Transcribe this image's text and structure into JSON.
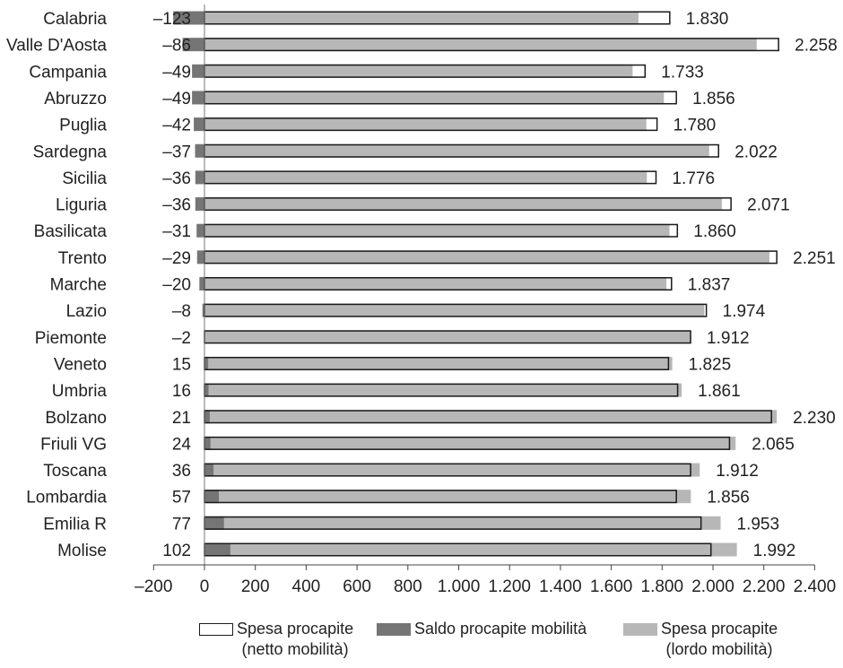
{
  "chart_data": {
    "type": "bar",
    "orientation": "horizontal",
    "categories": [
      "Calabria",
      "Valle D'Aosta",
      "Campania",
      "Abruzzo",
      "Puglia",
      "Sardegna",
      "Sicilia",
      "Liguria",
      "Basilicata",
      "Trento",
      "Marche",
      "Lazio",
      "Piemonte",
      "Veneto",
      "Umbria",
      "Bolzano",
      "Friuli VG",
      "Toscana",
      "Lombardia",
      "Emilia R",
      "Molise"
    ],
    "series": [
      {
        "name": "Spesa procapite\n(netto mobilità)",
        "values": [
          1830,
          2258,
          1733,
          1856,
          1780,
          2022,
          1776,
          2071,
          1860,
          2251,
          1837,
          1974,
          1912,
          1825,
          1861,
          2230,
          2065,
          1912,
          1856,
          1953,
          1992
        ]
      },
      {
        "name": "Saldo procapite mobilità",
        "values": [
          -123,
          -86,
          -49,
          -49,
          -42,
          -37,
          -36,
          -36,
          -31,
          -29,
          -20,
          -8,
          -2,
          15,
          16,
          21,
          24,
          36,
          57,
          77,
          102
        ]
      },
      {
        "name": "Spesa procapite\n(lordo mobilità)",
        "values": [
          1707,
          2172,
          1684,
          1807,
          1738,
          1985,
          1740,
          2035,
          1829,
          2222,
          1817,
          1966,
          1910,
          1840,
          1877,
          2251,
          2089,
          1948,
          1913,
          2030,
          2094
        ]
      }
    ],
    "value_labels": [
      "1.830",
      "2.258",
      "1.733",
      "1.856",
      "1.780",
      "2.022",
      "1.776",
      "2.071",
      "1.860",
      "2.251",
      "1.837",
      "1.974",
      "1.912",
      "1.825",
      "1.861",
      "2.230",
      "2.065",
      "1.912",
      "1.856",
      "1.953",
      "1.992"
    ],
    "saldo_labels": [
      "–123",
      "–86",
      "–49",
      "–49",
      "–42",
      "–37",
      "–36",
      "–36",
      "–31",
      "–29",
      "–20",
      "–8",
      "–2",
      "15",
      "16",
      "21",
      "24",
      "36",
      "57",
      "77",
      "102"
    ],
    "xlim": [
      -200,
      2400
    ],
    "xticks": [
      -200,
      0,
      200,
      400,
      600,
      800,
      1000,
      1200,
      1400,
      1600,
      1800,
      2000,
      2200,
      2400
    ],
    "xtick_labels": [
      "–200",
      "0",
      "200",
      "400",
      "600",
      "800",
      "1.000",
      "1.200",
      "1.400",
      "1.600",
      "1.800",
      "2.000",
      "2.200",
      "2.400"
    ],
    "grid": false,
    "legend_position": "bottom",
    "colors": {
      "netto_fill": "#ffffff",
      "saldo": "#757575",
      "lordo": "#b7b7b7",
      "outline": "#1a1a1a"
    }
  },
  "legend": {
    "netto": "Spesa procapite\n(netto mobilità)",
    "saldo": "Saldo procapite mobilità",
    "lordo": "Spesa procapite\n(lordo mobilità)"
  }
}
